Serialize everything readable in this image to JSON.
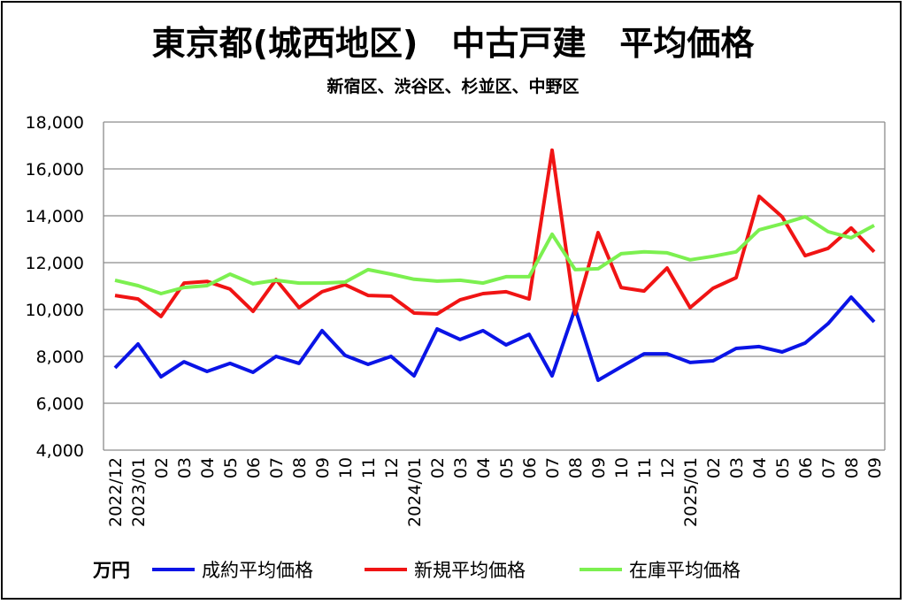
{
  "chart_data": {
    "type": "line",
    "title": "東京都(城西地区)　中古戸建　平均価格",
    "subtitle": "新宿区、渋谷区、杉並区、中野区",
    "unit_label": "万円",
    "xlabel": "",
    "ylabel": "",
    "ylim": [
      4000,
      18000
    ],
    "yticks": [
      4000,
      6000,
      8000,
      10000,
      12000,
      14000,
      16000,
      18000
    ],
    "ytick_labels": [
      "4,000",
      "6,000",
      "8,000",
      "10,000",
      "12,000",
      "14,000",
      "16,000",
      "18,000"
    ],
    "grid": true,
    "legend_position": "bottom",
    "categories": [
      "2022/12",
      "2023/01",
      "02",
      "03",
      "04",
      "05",
      "06",
      "07",
      "08",
      "09",
      "10",
      "11",
      "12",
      "2024/01",
      "02",
      "03",
      "04",
      "05",
      "06",
      "07",
      "08",
      "09",
      "10",
      "11",
      "12",
      "2025/01",
      "02",
      "03",
      "04",
      "05",
      "06",
      "07",
      "08",
      "09"
    ],
    "series": [
      {
        "name": "成約平均価格",
        "color": "#0a14e6",
        "values": [
          7510,
          8530,
          7130,
          7770,
          7360,
          7700,
          7320,
          8000,
          7700,
          9100,
          8040,
          7660,
          8000,
          7170,
          9170,
          8720,
          9100,
          8490,
          8940,
          7170,
          10040,
          6980,
          7550,
          8110,
          8110,
          7740,
          7810,
          8340,
          8420,
          8190,
          8570,
          9400,
          10530,
          9470
        ]
      },
      {
        "name": "新規平均価格",
        "color": "#f01414",
        "values": [
          10600,
          10450,
          9700,
          11130,
          11200,
          10870,
          9920,
          11280,
          10080,
          10760,
          11060,
          10600,
          10570,
          9850,
          9810,
          10410,
          10680,
          10760,
          10450,
          16800,
          9810,
          13280,
          10940,
          10790,
          11770,
          10080,
          10910,
          11360,
          14830,
          13960,
          12300,
          12610,
          13480,
          12460
        ]
      },
      {
        "name": "在庫平均価格",
        "color": "#7cf050",
        "values": [
          11250,
          11020,
          10680,
          10940,
          11020,
          11510,
          11100,
          11250,
          11130,
          11130,
          11170,
          11700,
          11510,
          11290,
          11210,
          11250,
          11130,
          11400,
          11400,
          13210,
          11700,
          11740,
          12380,
          12460,
          12420,
          12120,
          12270,
          12460,
          13400,
          13660,
          13960,
          13320,
          13060,
          13590
        ]
      }
    ]
  }
}
